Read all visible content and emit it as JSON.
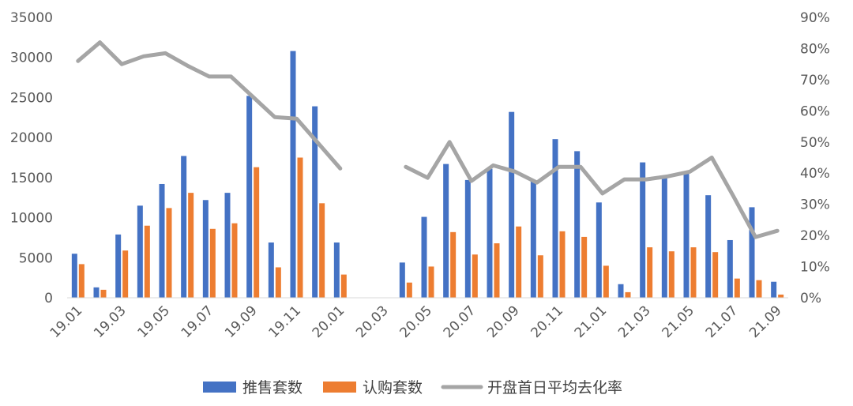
{
  "chart_data": {
    "type": "bar",
    "categories": [
      "19.01",
      "19.02",
      "19.03",
      "19.04",
      "19.05",
      "19.06",
      "19.07",
      "19.08",
      "19.09",
      "19.10",
      "19.11",
      "19.12",
      "20.01",
      "20.02",
      "20.03",
      "20.04",
      "20.05",
      "20.06",
      "20.07",
      "20.08",
      "20.09",
      "20.10",
      "20.11",
      "20.12",
      "21.01",
      "21.02",
      "21.03",
      "21.04",
      "21.05",
      "21.06",
      "21.07",
      "21.08",
      "21.09"
    ],
    "x_tick_labels": [
      "19.01",
      "19.03",
      "19.05",
      "19.07",
      "19.09",
      "19.11",
      "20.01",
      "20.03",
      "20.05",
      "20.07",
      "20.09",
      "20.11",
      "21.01",
      "21.03",
      "21.05",
      "21.07",
      "21.09"
    ],
    "series": [
      {
        "name": "推售套数",
        "type": "bar",
        "axis": "left",
        "color": "#4472C4",
        "values": [
          5500,
          1300,
          7900,
          11500,
          14200,
          17700,
          12200,
          13100,
          25200,
          6900,
          30800,
          23900,
          6900,
          null,
          null,
          4400,
          10100,
          16700,
          14700,
          16100,
          23200,
          14700,
          19800,
          18300,
          11900,
          1700,
          16900,
          15000,
          15600,
          12800,
          7200,
          11300,
          2000
        ]
      },
      {
        "name": "认购套数",
        "type": "bar",
        "axis": "left",
        "color": "#ED7D31",
        "values": [
          4200,
          1000,
          5900,
          9000,
          11200,
          13100,
          8600,
          9300,
          16300,
          3800,
          17500,
          11800,
          2900,
          null,
          null,
          1900,
          3900,
          8200,
          5400,
          6800,
          8900,
          5300,
          8300,
          7600,
          4000,
          700,
          6300,
          5800,
          6300,
          5700,
          2400,
          2200,
          400
        ]
      },
      {
        "name": "开盘首日平均去化率",
        "type": "line",
        "axis": "right",
        "color": "#A5A5A5",
        "values": [
          76,
          82,
          75,
          77.5,
          78.5,
          74.5,
          71,
          71,
          64.5,
          58,
          57.5,
          49.5,
          41.5,
          null,
          null,
          42,
          38.5,
          50,
          37.5,
          42.5,
          40.5,
          37,
          42,
          42,
          33.5,
          38,
          38,
          39,
          40.5,
          45,
          32.5,
          19.5,
          21.5
        ]
      }
    ],
    "y_left": {
      "ylim": [
        0,
        35000
      ],
      "ticks": [
        "0",
        "5000",
        "10000",
        "15000",
        "20000",
        "25000",
        "30000",
        "35000"
      ]
    },
    "y_right": {
      "ylim": [
        0,
        90
      ],
      "ticks": [
        "0%",
        "10%",
        "20%",
        "30%",
        "40%",
        "50%",
        "60%",
        "70%",
        "80%",
        "90%"
      ]
    },
    "grid": false,
    "legend_position": "bottom"
  }
}
